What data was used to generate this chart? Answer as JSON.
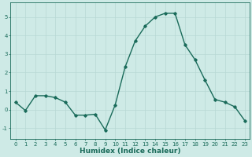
{
  "x": [
    0,
    1,
    2,
    3,
    4,
    5,
    6,
    7,
    8,
    9,
    10,
    11,
    12,
    13,
    14,
    15,
    16,
    17,
    18,
    19,
    20,
    21,
    22,
    23
  ],
  "y": [
    0.4,
    -0.05,
    0.75,
    0.75,
    0.65,
    0.4,
    -0.3,
    -0.3,
    -0.25,
    -1.1,
    0.25,
    2.3,
    3.7,
    4.5,
    5.0,
    5.2,
    5.2,
    3.5,
    2.7,
    1.6,
    0.55,
    0.4,
    0.15,
    -0.6
  ],
  "line_color": "#1a6b5a",
  "marker": "D",
  "markersize": 1.8,
  "linewidth": 1.0,
  "xlabel": "Humidex (Indice chaleur)",
  "xlim": [
    -0.5,
    23.5
  ],
  "ylim": [
    -1.6,
    5.8
  ],
  "yticks": [
    -1,
    0,
    1,
    2,
    3,
    4,
    5
  ],
  "xticks": [
    0,
    1,
    2,
    3,
    4,
    5,
    6,
    7,
    8,
    9,
    10,
    11,
    12,
    13,
    14,
    15,
    16,
    17,
    18,
    19,
    20,
    21,
    22,
    23
  ],
  "bg_color": "#ceeae6",
  "grid_color": "#b8d8d4",
  "tick_fontsize": 5.0,
  "xlabel_fontsize": 6.5,
  "axes_color": "#1a6b5a"
}
